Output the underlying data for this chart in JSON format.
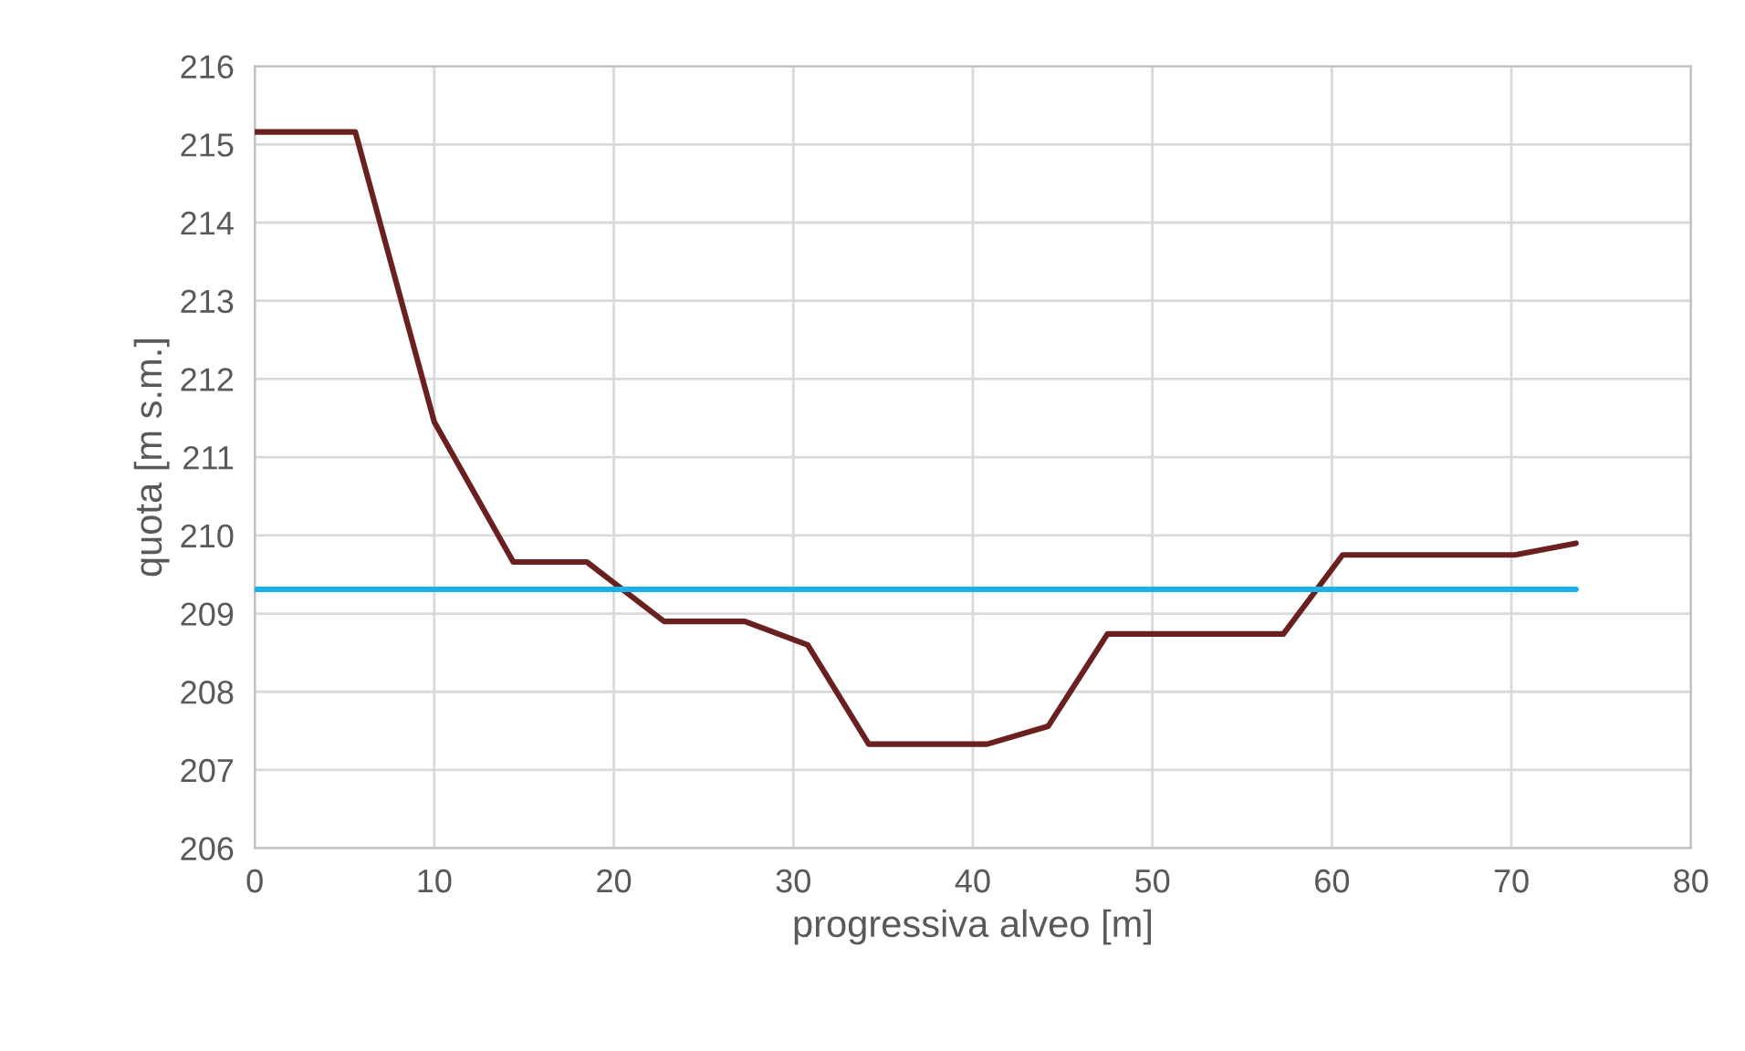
{
  "chart_data": {
    "type": "line",
    "xlabel": "progressiva alveo [m]",
    "ylabel": "quota [m s.m.]",
    "series": [
      {
        "color": "#6b2020",
        "x": [
          0,
          5.6,
          10.0,
          14.4,
          18.5,
          22.8,
          27.3,
          30.8,
          34.2,
          40.8,
          44.2,
          47.5,
          57.3,
          60.6,
          70.2,
          73.6
        ],
        "values": [
          215.16,
          215.16,
          211.45,
          209.66,
          209.66,
          208.9,
          208.9,
          208.6,
          207.33,
          207.33,
          207.56,
          208.74,
          208.74,
          209.75,
          209.75,
          209.9
        ]
      },
      {
        "color": "#1ab0e8",
        "x": [
          0,
          73.6
        ],
        "values": [
          209.31,
          209.31
        ]
      }
    ],
    "xlim": [
      0,
      80
    ],
    "xticks": [
      0,
      10,
      20,
      30,
      40,
      50,
      60,
      70,
      80
    ],
    "ylim": [
      206,
      216
    ],
    "yticks": [
      206,
      207,
      208,
      209,
      210,
      211,
      212,
      213,
      214,
      215,
      216
    ],
    "grid": true,
    "marker": "none",
    "line_style": "solid"
  }
}
